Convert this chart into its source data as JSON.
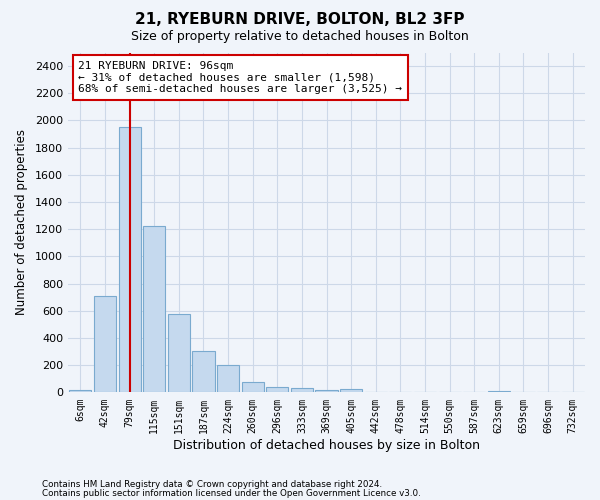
{
  "title1": "21, RYEBURN DRIVE, BOLTON, BL2 3FP",
  "title2": "Size of property relative to detached houses in Bolton",
  "xlabel": "Distribution of detached houses by size in Bolton",
  "ylabel": "Number of detached properties",
  "categories": [
    "6sqm",
    "42sqm",
    "79sqm",
    "115sqm",
    "151sqm",
    "187sqm",
    "224sqm",
    "260sqm",
    "296sqm",
    "333sqm",
    "369sqm",
    "405sqm",
    "442sqm",
    "478sqm",
    "514sqm",
    "550sqm",
    "587sqm",
    "623sqm",
    "659sqm",
    "696sqm",
    "732sqm"
  ],
  "values": [
    15,
    710,
    1950,
    1225,
    575,
    305,
    205,
    80,
    40,
    30,
    15,
    25,
    5,
    5,
    0,
    0,
    0,
    10,
    0,
    0,
    0
  ],
  "bar_color": "#c5d9ee",
  "bar_edge_color": "#7aaacf",
  "vline_index": 2,
  "vline_color": "#cc0000",
  "annotation_line1": "21 RYEBURN DRIVE: 96sqm",
  "annotation_line2": "← 31% of detached houses are smaller (1,598)",
  "annotation_line3": "68% of semi-detached houses are larger (3,525) →",
  "annotation_box_facecolor": "#ffffff",
  "annotation_box_edgecolor": "#cc0000",
  "ylim": [
    0,
    2500
  ],
  "yticks": [
    0,
    200,
    400,
    600,
    800,
    1000,
    1200,
    1400,
    1600,
    1800,
    2000,
    2200,
    2400
  ],
  "grid_color": "#cdd8e8",
  "footer1": "Contains HM Land Registry data © Crown copyright and database right 2024.",
  "footer2": "Contains public sector information licensed under the Open Government Licence v3.0.",
  "bg_color": "#f0f4fa",
  "plot_bg_color": "#f0f4fa"
}
